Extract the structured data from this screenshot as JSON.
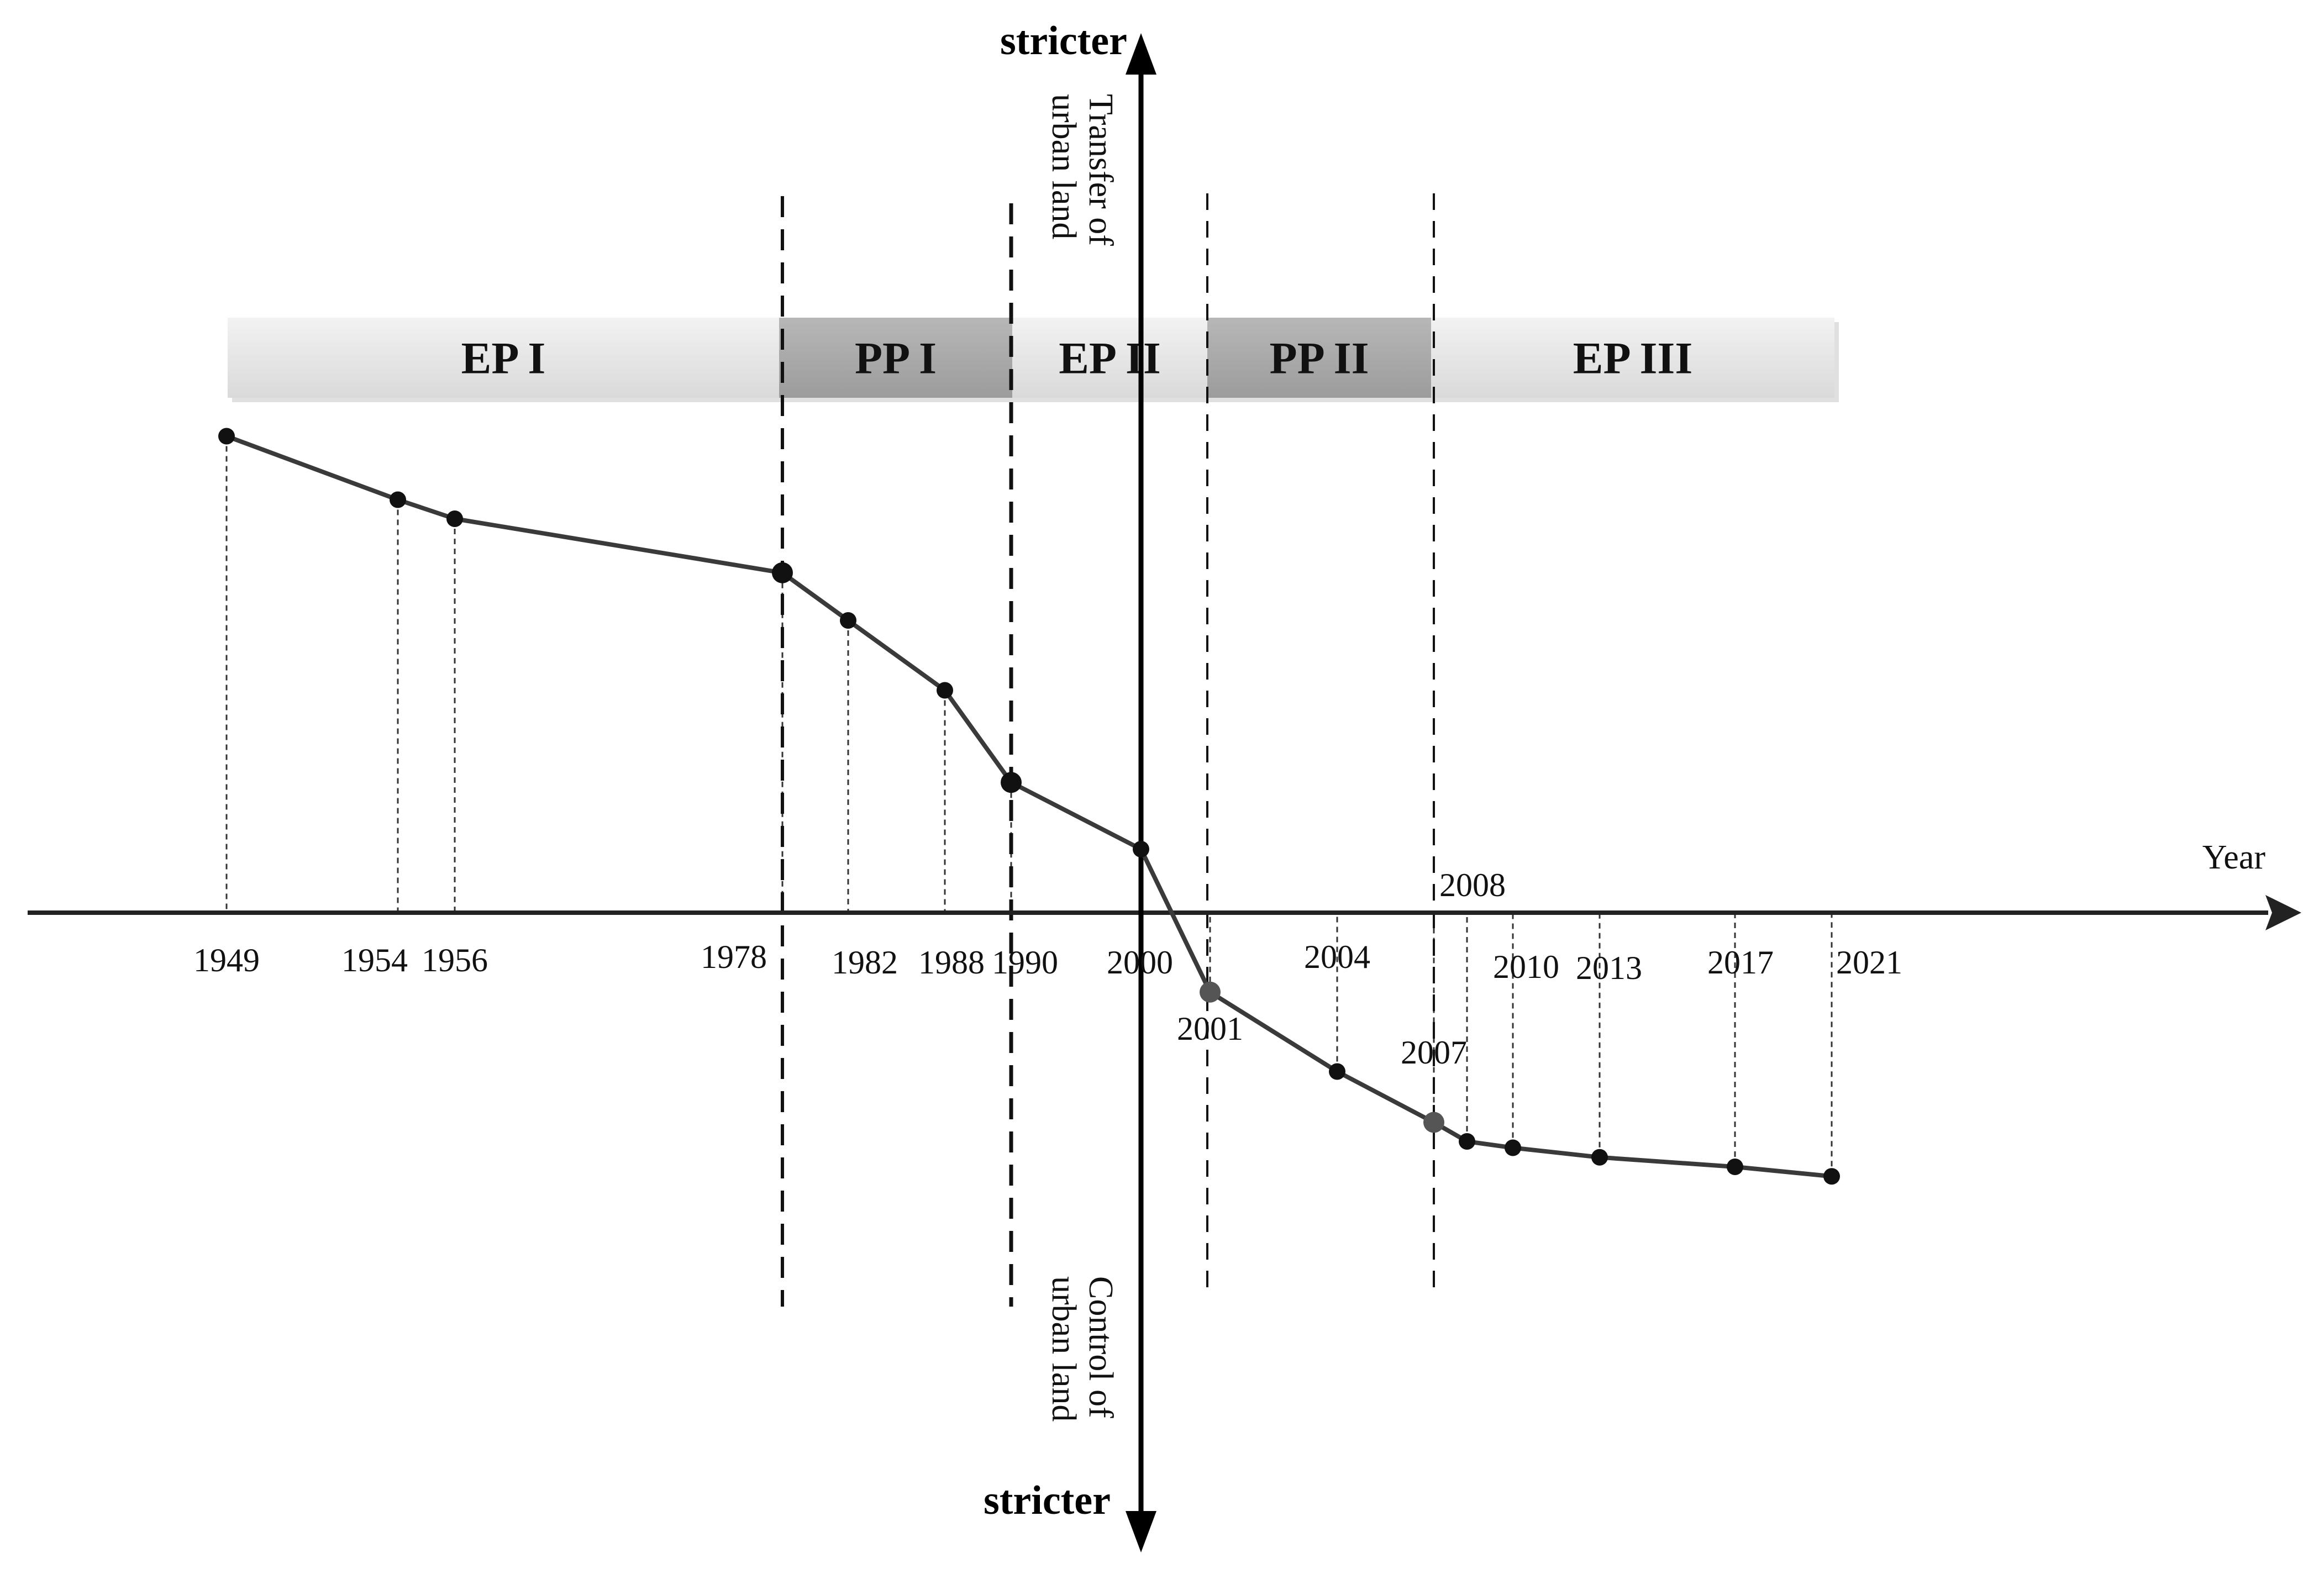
{
  "chart_data": {
    "type": "line",
    "x_label": "Year",
    "y_label_top_bold": "stricter",
    "y_label_top_side": [
      "Transfer of",
      "urban land"
    ],
    "y_label_bottom_bold": "stricter",
    "y_label_bottom_side": [
      "Control of",
      "urban land"
    ],
    "periods": [
      {
        "label": "EP I",
        "start": 1949,
        "end": 1978,
        "shade": "light"
      },
      {
        "label": "PP I",
        "start": 1978,
        "end": 1990,
        "shade": "dark"
      },
      {
        "label": "EP II",
        "start": 1990,
        "end": 2001,
        "shade": "light"
      },
      {
        "label": "PP II",
        "start": 2001,
        "end": 2007,
        "shade": "dark"
      },
      {
        "label": "EP III",
        "start": 2007,
        "end": 2021,
        "shade": "light"
      }
    ],
    "boundaries": [
      1978,
      1990,
      2001,
      2007
    ],
    "points": [
      {
        "year": 1949,
        "label": "1949",
        "value": 7.5,
        "label_side": "below"
      },
      {
        "year": 1954,
        "label": "1954",
        "value": 6.5,
        "label_side": "below"
      },
      {
        "year": 1956,
        "label": "1956",
        "value": 6.2,
        "label_side": "below"
      },
      {
        "year": 1978,
        "label": "1978",
        "value": 5.35,
        "label_side": "below"
      },
      {
        "year": 1982,
        "label": "1982",
        "value": 4.6,
        "label_side": "below"
      },
      {
        "year": 1988,
        "label": "1988",
        "value": 3.5,
        "label_side": "below"
      },
      {
        "year": 1990,
        "label": "1990",
        "value": 2.05,
        "label_side": "below"
      },
      {
        "year": 2000,
        "label": "2000",
        "value": 1.0,
        "label_side": "below"
      },
      {
        "year": 2001,
        "label": "2001",
        "value": -1.25,
        "label_side": "below"
      },
      {
        "year": 2004,
        "label": "2004",
        "value": -2.5,
        "label_side": "above"
      },
      {
        "year": 2007,
        "label": "2007",
        "value": -3.3,
        "label_side": "above"
      },
      {
        "year": 2008,
        "label": "2008",
        "value": -3.6,
        "label_side": "above"
      },
      {
        "year": 2010,
        "label": "2010",
        "value": -3.7,
        "label_side": "below"
      },
      {
        "year": 2013,
        "label": "2013",
        "value": -3.85,
        "label_side": "below"
      },
      {
        "year": 2017,
        "label": "2017",
        "value": -4.0,
        "label_side": "below"
      },
      {
        "year": 2021,
        "label": "2021",
        "value": -4.15,
        "label_side": "below"
      }
    ],
    "colors": {
      "line": "#3a3a3a",
      "marker": "#111111",
      "axis": "#222222",
      "band_light": "#e4e4e4",
      "band_dark": "#a9a9a9"
    }
  }
}
